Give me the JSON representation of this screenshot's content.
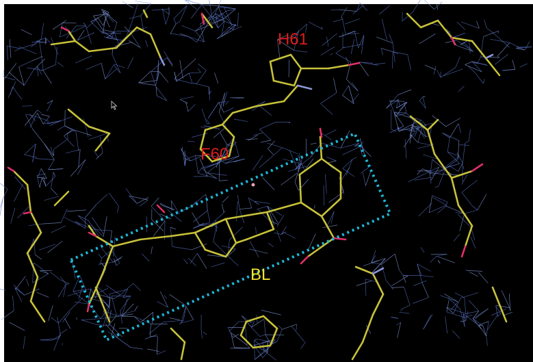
{
  "colors": {
    "background": "#000000",
    "mesh": "#5b76c9",
    "mesh_light": "#8aa2e6",
    "carbon": "#c8c23a",
    "oxygen": "#e0306a",
    "nitrogen": "#8c96d8",
    "box": "#1fb6d6",
    "label_red": "#e01b1b",
    "label_yellow": "#f2e52a"
  },
  "labels": [
    {
      "text": "H61",
      "color": "label_red"
    },
    {
      "text": "F60",
      "color": "label_red"
    },
    {
      "text": "BL",
      "color": "label_yellow"
    }
  ],
  "icons": {
    "cursor": "mouse-pointer-icon"
  }
}
